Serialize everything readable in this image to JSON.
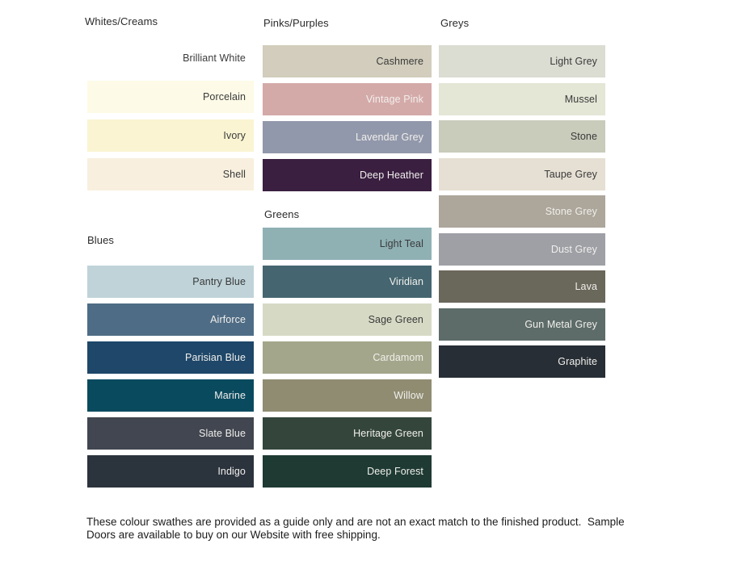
{
  "sections": [
    {
      "id": "whites",
      "label": "Whites/Creams",
      "swatches": [
        {
          "name": "Brilliant White",
          "hex": "#FFFFFF",
          "text": "dark"
        },
        {
          "name": "Porcelain",
          "hex": "#FDFBE7",
          "text": "dark"
        },
        {
          "name": "Ivory",
          "hex": "#FAF4D2",
          "text": "dark"
        },
        {
          "name": "Shell",
          "hex": "#F8EFDE",
          "text": "dark"
        }
      ]
    },
    {
      "id": "pinks",
      "label": "Pinks/Purples",
      "swatches": [
        {
          "name": "Cashmere",
          "hex": "#D2CDBC",
          "text": "dark"
        },
        {
          "name": "Vintage Pink",
          "hex": "#D4AAA9",
          "text": "light"
        },
        {
          "name": "Lavendar Grey",
          "hex": "#9298AB",
          "text": "light"
        },
        {
          "name": "Deep Heather",
          "hex": "#3A1F41",
          "text": "light"
        }
      ]
    },
    {
      "id": "greys",
      "label": "Greys",
      "swatches": [
        {
          "name": "Light Grey",
          "hex": "#DBDCD2",
          "text": "dark"
        },
        {
          "name": "Mussel",
          "hex": "#E4E6D6",
          "text": "dark"
        },
        {
          "name": "Stone",
          "hex": "#C9CBBB",
          "text": "dark"
        },
        {
          "name": "Taupe Grey",
          "hex": "#E6DFD3",
          "text": "dark"
        },
        {
          "name": "Stone Grey",
          "hex": "#ACA69B",
          "text": "light"
        },
        {
          "name": "Dust Grey",
          "hex": "#9EA0A6",
          "text": "light"
        },
        {
          "name": "Lava",
          "hex": "#6A675B",
          "text": "light"
        },
        {
          "name": "Gun Metal Grey",
          "hex": "#5D6C69",
          "text": "light"
        },
        {
          "name": "Graphite",
          "hex": "#272E35",
          "text": "light"
        }
      ]
    },
    {
      "id": "blues",
      "label": "Blues",
      "swatches": [
        {
          "name": "Pantry Blue",
          "hex": "#BFD3D9",
          "text": "dark"
        },
        {
          "name": "Airforce",
          "hex": "#4E6C85",
          "text": "light"
        },
        {
          "name": "Parisian Blue",
          "hex": "#1E4769",
          "text": "light"
        },
        {
          "name": "Marine",
          "hex": "#0A4A5F",
          "text": "light"
        },
        {
          "name": "Slate Blue",
          "hex": "#414650",
          "text": "light"
        },
        {
          "name": "Indigo",
          "hex": "#2B333D",
          "text": "light"
        }
      ]
    },
    {
      "id": "greens",
      "label": "Greens",
      "swatches": [
        {
          "name": "Light Teal",
          "hex": "#8FB1B4",
          "text": "dark"
        },
        {
          "name": "Viridian",
          "hex": "#456670",
          "text": "light"
        },
        {
          "name": "Sage Green",
          "hex": "#D6DAC5",
          "text": "dark"
        },
        {
          "name": "Cardamom",
          "hex": "#A4A68B",
          "text": "light"
        },
        {
          "name": "Willow",
          "hex": "#8F8C72",
          "text": "light"
        },
        {
          "name": "Heritage Green",
          "hex": "#34463C",
          "text": "light"
        },
        {
          "name": "Deep Forest",
          "hex": "#1E3A33",
          "text": "light"
        }
      ]
    }
  ],
  "text_colors": {
    "dark": "#3A3A3A",
    "light": "#F1EFEC"
  },
  "footer": {
    "line1": "These colour swathes are provided as a guide only and are not an exact match to the finished product.  Sample",
    "line2": "Doors are available to buy on our Website with free shipping."
  }
}
